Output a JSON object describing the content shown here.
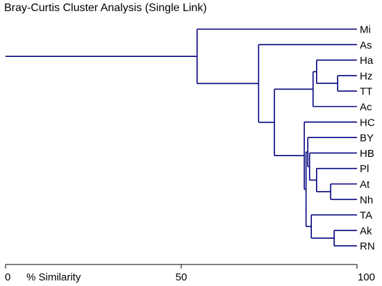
{
  "title": "Bray-Curtis Cluster Analysis (Single Link)",
  "axis": {
    "label": "% Similarity",
    "min": 0,
    "max": 100,
    "ticks": [
      "0",
      "50",
      "100"
    ]
  },
  "leaves": [
    "Mi",
    "As",
    "Ha",
    "Hz",
    "TT",
    "Ac",
    "HC",
    "BY",
    "HB",
    "Pl",
    "At",
    "Nh",
    "TA",
    "Ak",
    "RN"
  ],
  "merges": [
    {
      "a": "Hz",
      "b": "TT",
      "similarity": 94.5
    },
    {
      "a": "At",
      "b": "Nh",
      "similarity": 92.5
    },
    {
      "a": "Ak",
      "b": "RN",
      "similarity": 93.5
    },
    {
      "a": "Ha",
      "b": "Hz|TT",
      "similarity": 88.5
    },
    {
      "a": "Ha|Hz|TT",
      "b": "Ac",
      "similarity": 87.5
    },
    {
      "a": "Pl",
      "b": "At|Nh",
      "similarity": 88.5
    },
    {
      "a": "HB",
      "b": "Pl|At|Nh",
      "similarity": 86.5
    },
    {
      "a": "BY",
      "b": "HB|Pl|At|Nh",
      "similarity": 86.0
    },
    {
      "a": "TA",
      "b": "Ak|RN",
      "similarity": 87.0
    },
    {
      "a": "BY|HB|Pl|At|Nh",
      "b": "TA|Ak|RN",
      "similarity": 85.5
    },
    {
      "a": "HC",
      "b": "BY|HB|Pl|At|Nh|TA|Ak|RN",
      "similarity": 85.0
    },
    {
      "a": "Ha|Hz|TT|Ac",
      "b": "HC|BY|HB|Pl|At|Nh|TA|Ak|RN",
      "similarity": 76.5
    },
    {
      "a": "As",
      "b": "Ha|Hz|TT|Ac|HC|BY|HB|Pl|At|Nh|TA|Ak|RN",
      "similarity": 72.0
    },
    {
      "a": "Mi",
      "b": "As|Ha|Hz|TT|Ac|HC|BY|HB|Pl|At|Nh|TA|Ak|RN",
      "similarity": 54.5
    }
  ],
  "root_similarity": 0,
  "line_color": "#00007f"
}
